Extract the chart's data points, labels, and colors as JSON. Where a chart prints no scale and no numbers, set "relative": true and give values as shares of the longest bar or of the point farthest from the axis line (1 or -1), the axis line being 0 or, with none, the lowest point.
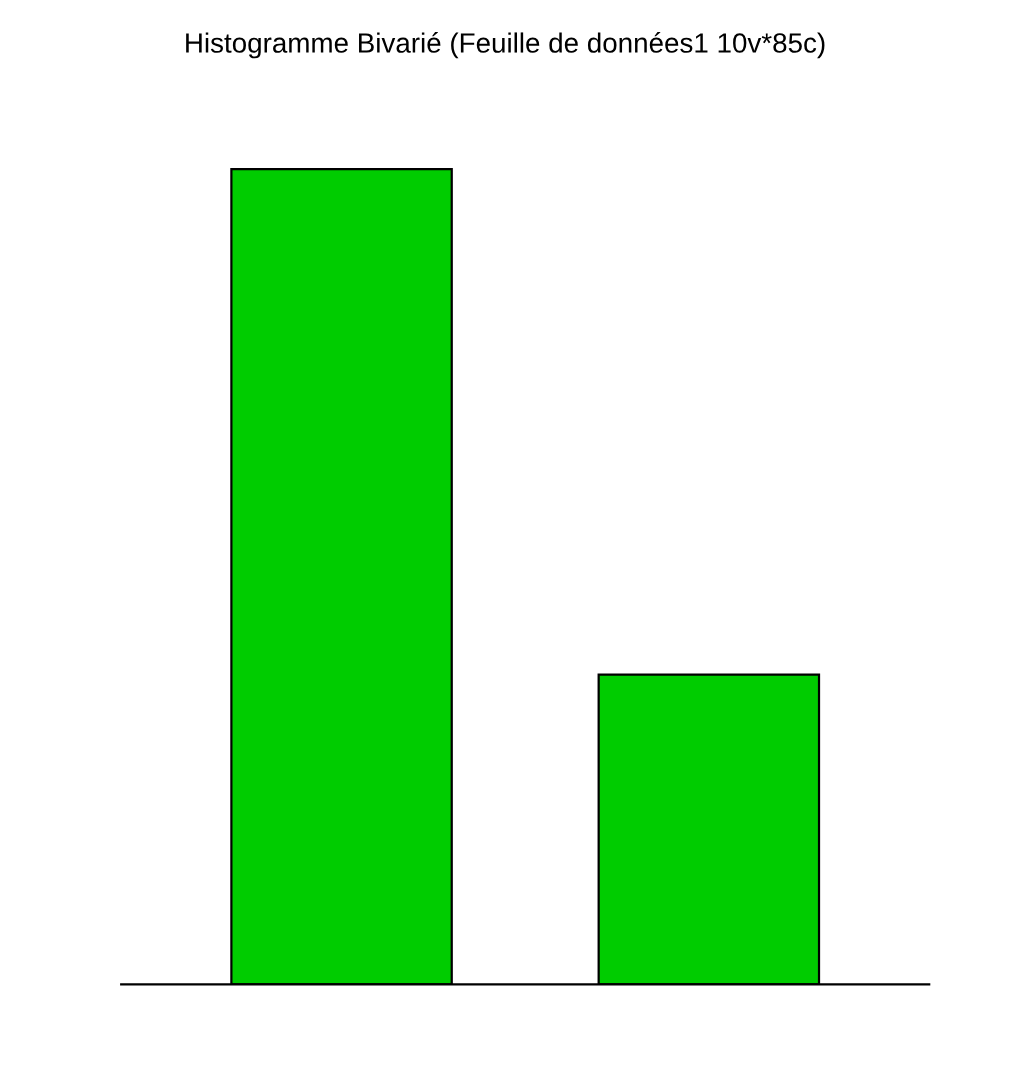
{
  "chart_data": {
    "type": "bar",
    "title": "Histogramme Bivarié (Feuille de données1 10v*85c)",
    "relative": true,
    "categories": [
      null,
      null
    ],
    "values": [
      1,
      0.38
    ],
    "color": "#00cc00"
  }
}
